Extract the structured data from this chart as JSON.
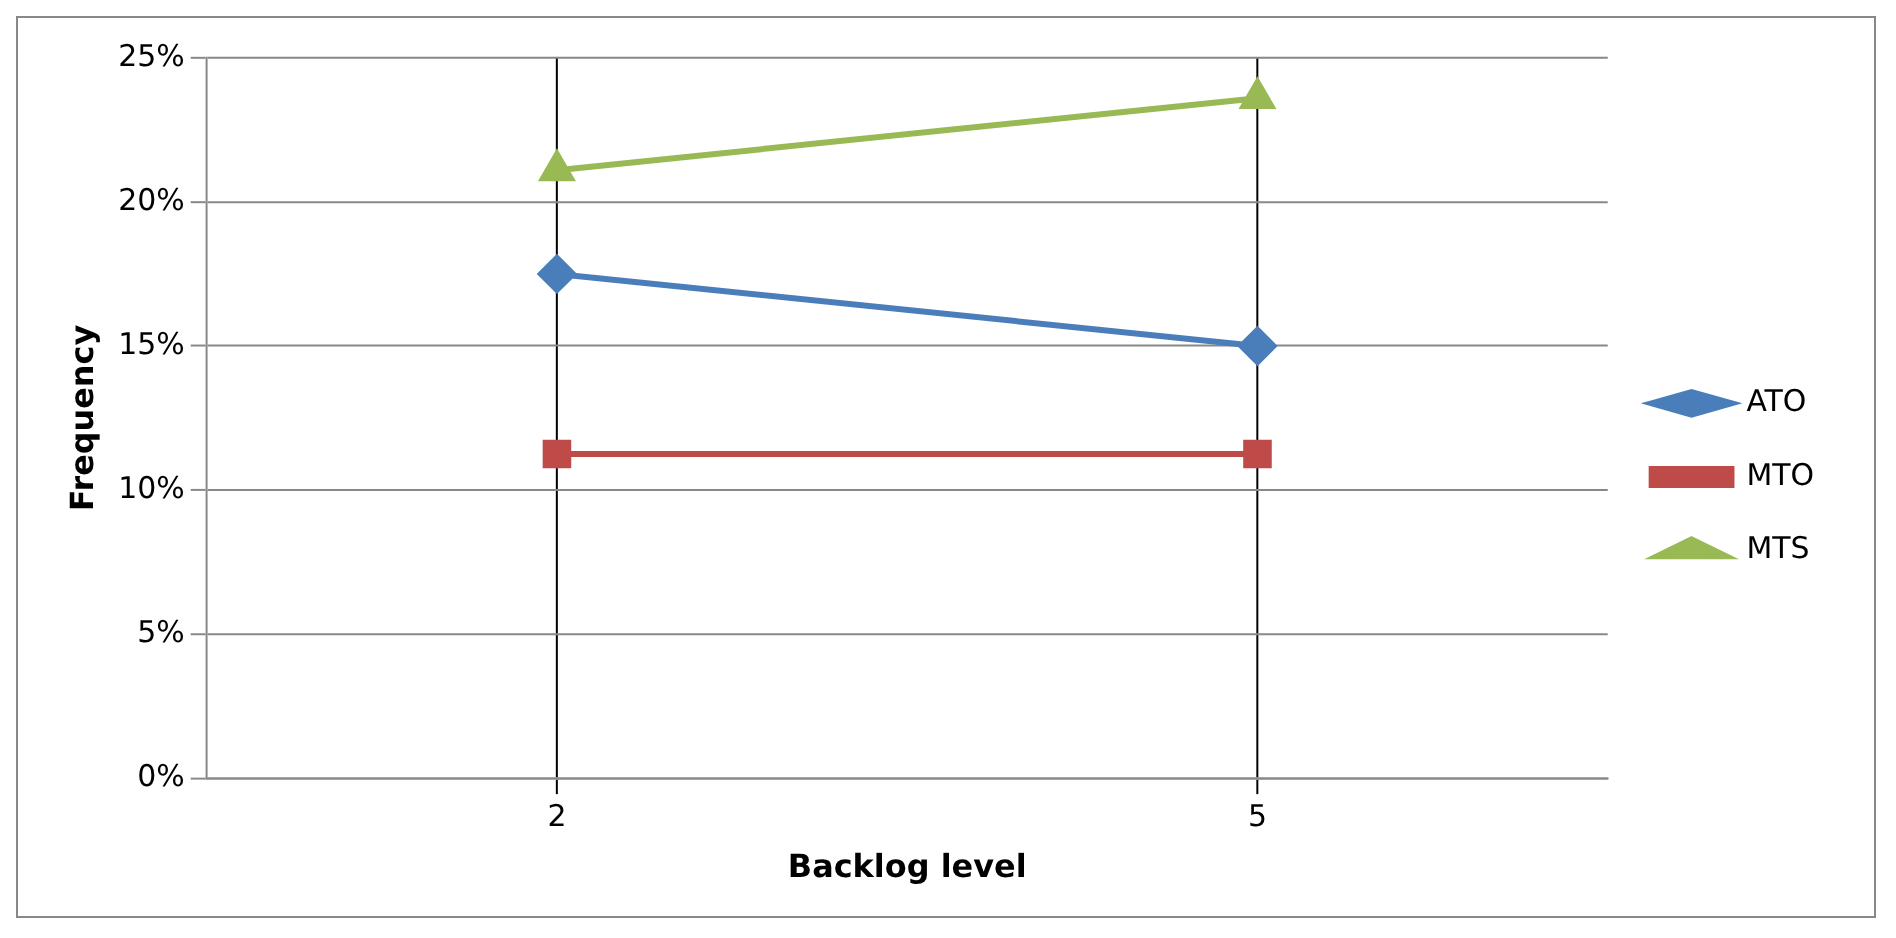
{
  "chart_data": {
    "type": "line",
    "xlabel": "Backlog level",
    "ylabel": "Frequency",
    "categories": [
      "2",
      "5"
    ],
    "series": [
      {
        "name": "ATO",
        "color": "#4a7ebb",
        "values": [
          17.5,
          15
        ],
        "marker": "diamond"
      },
      {
        "name": "MTO",
        "color": "#be4b48",
        "values": [
          11.25,
          11.25
        ],
        "marker": "square"
      },
      {
        "name": "MTS",
        "color": "#98b954",
        "values": [
          21.1,
          23.6
        ],
        "marker": "triangle"
      }
    ],
    "ylim": [
      0,
      25
    ],
    "yticks": [
      {
        "value": 0,
        "label": "0%"
      },
      {
        "value": 5,
        "label": "5%"
      },
      {
        "value": 10,
        "label": "10%"
      },
      {
        "value": 15,
        "label": "15%"
      },
      {
        "value": 20,
        "label": "20%"
      },
      {
        "value": 25,
        "label": "25%"
      }
    ],
    "grid": true,
    "legend": "right",
    "line_style": "solid"
  }
}
